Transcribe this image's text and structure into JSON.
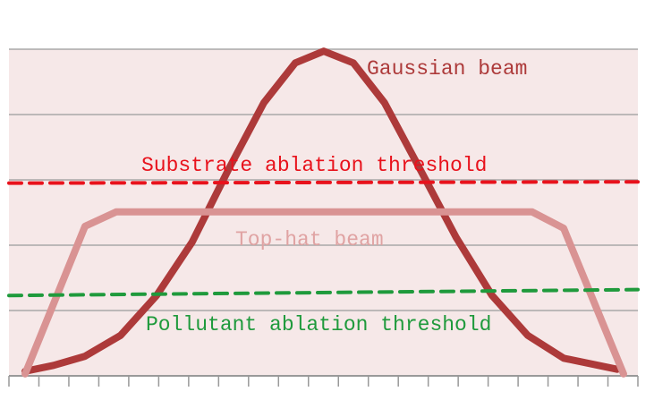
{
  "chart_data": {
    "type": "line",
    "xlim": [
      0,
      21
    ],
    "xticks": [
      0,
      1,
      2,
      3,
      4,
      5,
      6,
      7,
      8,
      9,
      10,
      11,
      12,
      13,
      14,
      15,
      16,
      17,
      18,
      19,
      20,
      21
    ],
    "ylim": [
      0,
      5
    ],
    "yticks": [
      0,
      1,
      2,
      3,
      4,
      5
    ],
    "grid": true,
    "series": [
      {
        "name": "Gaussian beam",
        "color": "#ad3a3a",
        "style": "solid",
        "x": [
          0.54,
          1.49,
          2.54,
          3.73,
          4.93,
          6.12,
          7.32,
          8.51,
          9.56,
          10.51,
          11.5,
          12.54,
          13.74,
          14.93,
          16.13,
          17.32,
          18.52,
          20.31
        ],
        "values": [
          0.07,
          0.16,
          0.3,
          0.62,
          1.23,
          2.05,
          3.15,
          4.18,
          4.79,
          4.97,
          4.79,
          4.18,
          3.15,
          2.12,
          1.23,
          0.62,
          0.27,
          0.1
        ]
      },
      {
        "name": "Top-hat beam",
        "color": "#d99393",
        "style": "solid",
        "x": [
          0.54,
          2.54,
          3.58,
          17.47,
          18.52,
          20.52
        ],
        "values": [
          0.03,
          2.29,
          2.51,
          2.51,
          2.26,
          0.03
        ]
      },
      {
        "name": "Substrate ablation threshold",
        "color": "#e8121c",
        "style": "dashed",
        "x": [
          0,
          21
        ],
        "values": [
          2.95,
          2.97
        ]
      },
      {
        "name": "Pollutant ablation threshold",
        "color": "#1f9a3c",
        "style": "dashed",
        "x": [
          0,
          21
        ],
        "values": [
          1.23,
          1.32
        ]
      }
    ]
  }
}
